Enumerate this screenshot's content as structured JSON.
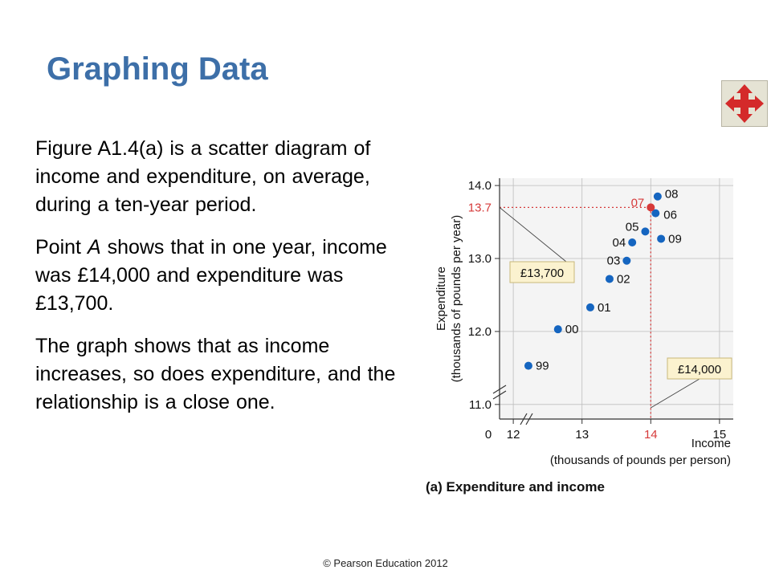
{
  "slide": {
    "title": "Graphing Data",
    "paragraphs": [
      "Figure A1.4(a) is a scatter diagram of income and expenditure, on average, during a ten-year period.",
      "",
      "The graph shows that as income increases, so does expenditure, and the relationship is a close one."
    ],
    "paragraph2": {
      "before": "Point ",
      "italic": "A",
      "after": " shows that in one year, income was £14,000 and expenditure was £13,700."
    },
    "copyright": "© Pearson Education 2012",
    "nav_icon": "four-way-arrows-icon"
  },
  "chart_data": {
    "type": "scatter",
    "caption": "(a) Expenditure and income",
    "xlabel": "Income",
    "xlabel_sub": "(thousands of pounds per person)",
    "ylabel": "Expenditure",
    "ylabel_sub": "(thousands of pounds per year)",
    "xlim": [
      11.8,
      15.2
    ],
    "ylim": [
      10.8,
      14.1
    ],
    "x_ticks": [
      12,
      13,
      14,
      15
    ],
    "x_tick_labels": [
      "12",
      "13",
      "14",
      "15"
    ],
    "x_origin_label": "0",
    "y_ticks": [
      11.0,
      12.0,
      13.0,
      14.0
    ],
    "y_tick_labels": [
      "11.0",
      "12.0",
      "13.0",
      "14.0"
    ],
    "points": [
      {
        "label": "99",
        "x": 12.22,
        "y": 11.53,
        "highlight": false
      },
      {
        "label": "00",
        "x": 12.65,
        "y": 12.03,
        "highlight": false
      },
      {
        "label": "01",
        "x": 13.12,
        "y": 12.33,
        "highlight": false
      },
      {
        "label": "02",
        "x": 13.4,
        "y": 12.72,
        "highlight": false
      },
      {
        "label": "03",
        "x": 13.65,
        "y": 12.97,
        "highlight": false
      },
      {
        "label": "04",
        "x": 13.73,
        "y": 13.22,
        "highlight": false
      },
      {
        "label": "05",
        "x": 13.92,
        "y": 13.37,
        "highlight": false
      },
      {
        "label": "06",
        "x": 14.07,
        "y": 13.62,
        "highlight": false
      },
      {
        "label": "07",
        "x": 14.0,
        "y": 13.7,
        "highlight": true
      },
      {
        "label": "08",
        "x": 14.1,
        "y": 13.85,
        "highlight": false
      },
      {
        "label": "09",
        "x": 14.15,
        "y": 13.27,
        "highlight": false
      }
    ],
    "highlight_y_label": "13.7",
    "highlight_x_label": "14",
    "annotations": [
      "£13,700",
      "£14,000"
    ],
    "colors": {
      "point": "#1565c0",
      "highlight": "#d63a3a",
      "callout_fill": "#fbf2cf",
      "callout_border": "#c9b87a",
      "grid": "#bdbdbd"
    },
    "grid": true
  }
}
